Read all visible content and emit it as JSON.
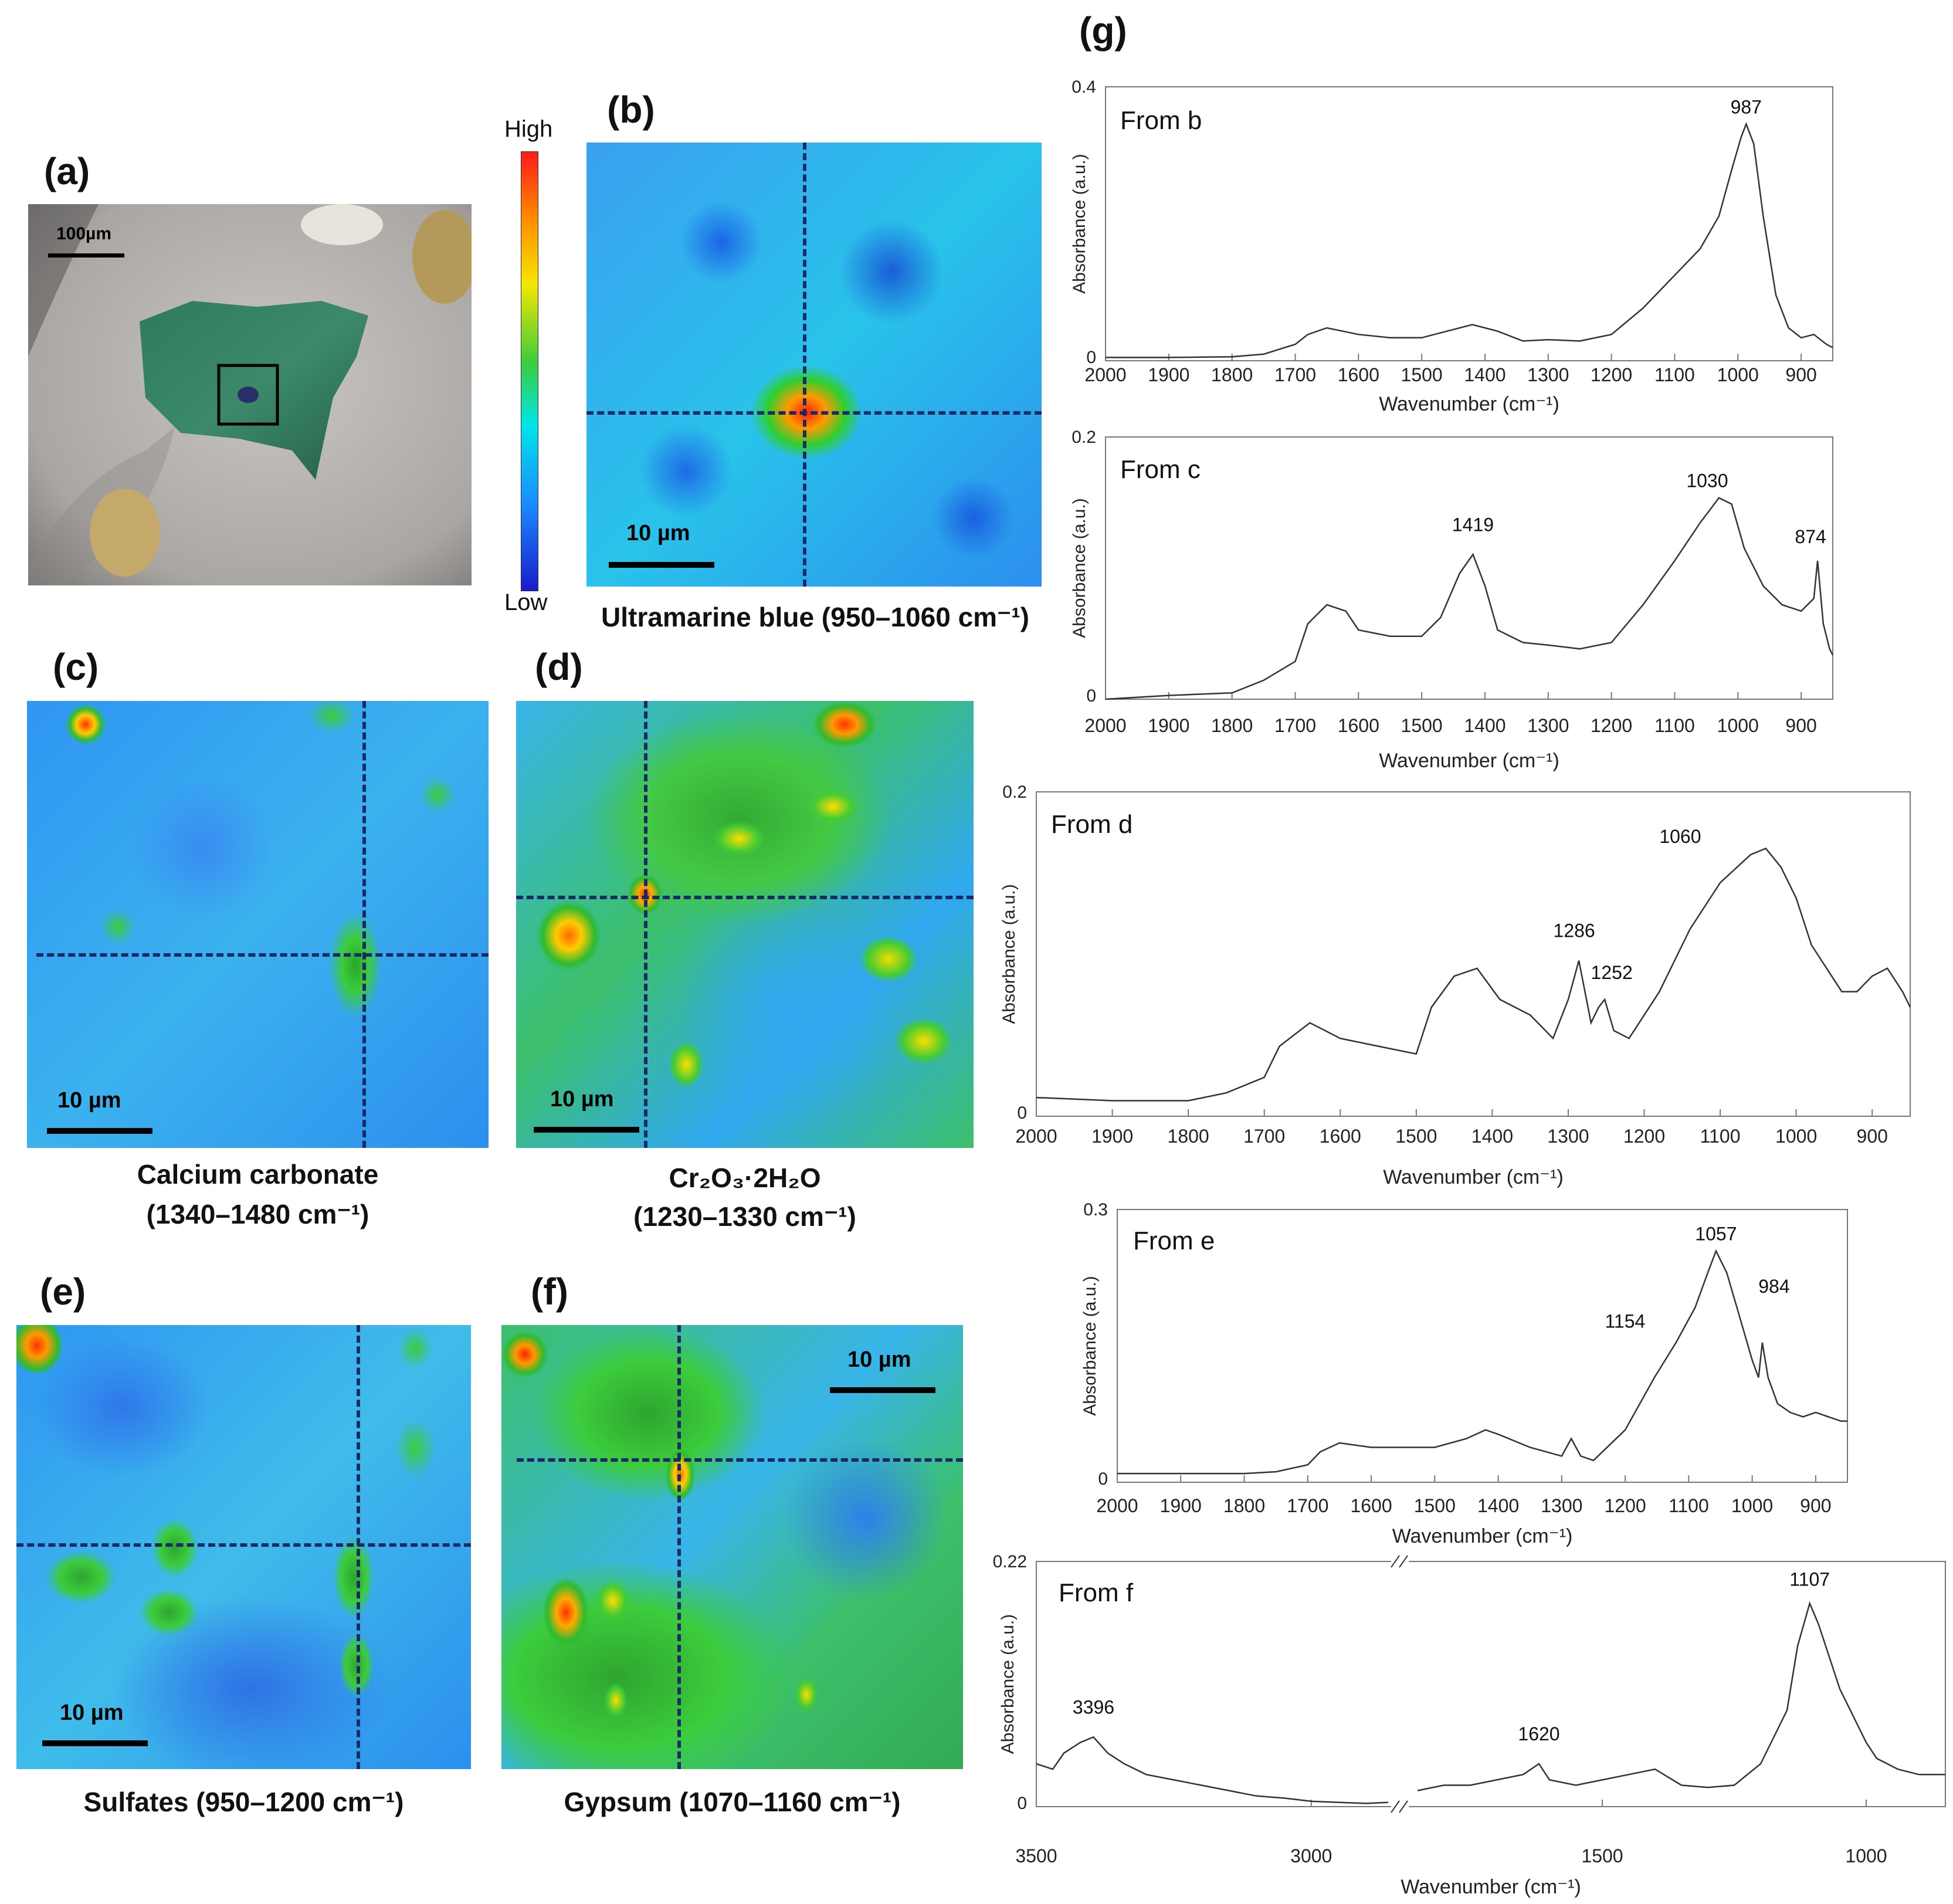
{
  "panel_a": {
    "label": "(a)",
    "scalebar": "100µm"
  },
  "colorbar": {
    "high": "High",
    "low": "Low"
  },
  "maps": [
    {
      "id": "b",
      "label": "(b)",
      "scalebar": "10 µm",
      "caption": "Ultramarine blue (950–1060 cm⁻¹)"
    },
    {
      "id": "c",
      "label": "(c)",
      "scalebar": "10 µm",
      "caption_line1": "Calcium carbonate",
      "caption_line2": "(1340–1480 cm⁻¹)"
    },
    {
      "id": "d",
      "label": "(d)",
      "scalebar": "10 µm",
      "caption_line1": "Cr₂O₃·2H₂O",
      "caption_line2": "(1230–1330 cm⁻¹)"
    },
    {
      "id": "e",
      "label": "(e)",
      "scalebar": "10 µm",
      "caption": "Sulfates (950–1200 cm⁻¹)"
    },
    {
      "id": "f",
      "label": "(f)",
      "scalebar": "10 µm",
      "caption": "Gypsum (1070–1160 cm⁻¹)"
    }
  ],
  "panel_g": {
    "label": "(g)"
  },
  "chart_data": [
    {
      "type": "line",
      "title": "From b",
      "xlabel": "Wavenumber (cm⁻¹)",
      "ylabel": "Absorbance (a.u.)",
      "xlim": [
        2000,
        850
      ],
      "ylim": [
        0,
        0.4
      ],
      "xticks": [
        "2000",
        "1900",
        "1800",
        "1700",
        "1600",
        "1500",
        "1400",
        "1300",
        "1200",
        "1100",
        "1000",
        "900"
      ],
      "yticks": [
        "0",
        "0.4"
      ],
      "annotations": [
        "987"
      ],
      "series": [
        {
          "x": [
            2000,
            1900,
            1800,
            1750,
            1700,
            1680,
            1650,
            1600,
            1550,
            1500,
            1460,
            1420,
            1380,
            1340,
            1300,
            1250,
            1200,
            1150,
            1100,
            1060,
            1030,
            1010,
            995,
            987,
            975,
            960,
            940,
            920,
            900,
            880,
            860,
            850
          ],
          "y": [
            0.005,
            0.005,
            0.006,
            0.01,
            0.025,
            0.04,
            0.05,
            0.04,
            0.035,
            0.035,
            0.045,
            0.055,
            0.045,
            0.03,
            0.032,
            0.03,
            0.04,
            0.08,
            0.13,
            0.17,
            0.22,
            0.29,
            0.34,
            0.36,
            0.33,
            0.22,
            0.1,
            0.05,
            0.035,
            0.04,
            0.025,
            0.02
          ]
        }
      ]
    },
    {
      "type": "line",
      "title": "From c",
      "xlabel": "Wavenumber (cm⁻¹)",
      "ylabel": "Absorbance (a.u.)",
      "xlim": [
        2000,
        850
      ],
      "ylim": [
        0,
        0.2
      ],
      "xticks": [
        "2000",
        "1900",
        "1800",
        "1700",
        "1600",
        "1500",
        "1400",
        "1300",
        "1200",
        "1100",
        "1000",
        "900"
      ],
      "yticks": [
        "0",
        "0.2"
      ],
      "annotations": [
        "1419",
        "1030",
        "874"
      ],
      "series": [
        {
          "x": [
            2000,
            1900,
            1800,
            1750,
            1700,
            1680,
            1650,
            1620,
            1600,
            1550,
            1500,
            1470,
            1440,
            1419,
            1400,
            1380,
            1340,
            1300,
            1250,
            1200,
            1150,
            1100,
            1060,
            1030,
            1010,
            990,
            960,
            930,
            900,
            880,
            874,
            865,
            855,
            850
          ],
          "y": [
            0.0,
            0.003,
            0.005,
            0.015,
            0.03,
            0.06,
            0.075,
            0.07,
            0.055,
            0.05,
            0.05,
            0.065,
            0.1,
            0.115,
            0.09,
            0.055,
            0.045,
            0.043,
            0.04,
            0.045,
            0.075,
            0.11,
            0.14,
            0.16,
            0.155,
            0.12,
            0.09,
            0.075,
            0.07,
            0.08,
            0.11,
            0.06,
            0.04,
            0.035
          ]
        }
      ]
    },
    {
      "type": "line",
      "title": "From d",
      "xlabel": "Wavenumber (cm⁻¹)",
      "ylabel": "Absorbance (a.u.)",
      "xlim": [
        2000,
        850
      ],
      "ylim": [
        0,
        0.2
      ],
      "xticks": [
        "2000",
        "1900",
        "1800",
        "1700",
        "1600",
        "1500",
        "1400",
        "1300",
        "1200",
        "1100",
        "1000",
        "900"
      ],
      "yticks": [
        "0",
        "0.2"
      ],
      "annotations": [
        "1060",
        "1286",
        "1252"
      ],
      "series": [
        {
          "x": [
            2000,
            1900,
            1800,
            1750,
            1700,
            1680,
            1640,
            1600,
            1550,
            1500,
            1480,
            1450,
            1420,
            1390,
            1370,
            1350,
            1320,
            1300,
            1286,
            1270,
            1260,
            1252,
            1240,
            1220,
            1180,
            1140,
            1100,
            1060,
            1040,
            1020,
            1000,
            980,
            960,
            940,
            920,
            900,
            880,
            860,
            850
          ],
          "y": [
            0.012,
            0.01,
            0.01,
            0.015,
            0.025,
            0.045,
            0.06,
            0.05,
            0.045,
            0.04,
            0.07,
            0.09,
            0.095,
            0.075,
            0.07,
            0.065,
            0.05,
            0.075,
            0.1,
            0.06,
            0.07,
            0.075,
            0.055,
            0.05,
            0.08,
            0.12,
            0.15,
            0.168,
            0.172,
            0.16,
            0.14,
            0.11,
            0.095,
            0.08,
            0.08,
            0.09,
            0.095,
            0.08,
            0.07
          ]
        }
      ]
    },
    {
      "type": "line",
      "title": "From e",
      "xlabel": "Wavenumber (cm⁻¹)",
      "ylabel": "Absorbance (a.u.)",
      "xlim": [
        2000,
        850
      ],
      "ylim": [
        0,
        0.3
      ],
      "xticks": [
        "2000",
        "1900",
        "1800",
        "1700",
        "1600",
        "1500",
        "1400",
        "1300",
        "1200",
        "1100",
        "1000",
        "900"
      ],
      "yticks": [
        "0",
        "0.3"
      ],
      "annotations": [
        "1057",
        "1154",
        "984"
      ],
      "series": [
        {
          "x": [
            2000,
            1900,
            1800,
            1750,
            1700,
            1680,
            1650,
            1600,
            1550,
            1500,
            1450,
            1420,
            1400,
            1350,
            1300,
            1285,
            1270,
            1250,
            1200,
            1154,
            1120,
            1090,
            1070,
            1057,
            1040,
            1020,
            1000,
            990,
            984,
            975,
            960,
            940,
            920,
            900,
            880,
            860,
            850
          ],
          "y": [
            0.01,
            0.01,
            0.01,
            0.012,
            0.02,
            0.035,
            0.045,
            0.04,
            0.04,
            0.04,
            0.05,
            0.06,
            0.055,
            0.04,
            0.03,
            0.05,
            0.03,
            0.025,
            0.06,
            0.12,
            0.16,
            0.2,
            0.24,
            0.265,
            0.24,
            0.19,
            0.14,
            0.12,
            0.16,
            0.12,
            0.09,
            0.08,
            0.075,
            0.08,
            0.075,
            0.07,
            0.07
          ]
        }
      ]
    },
    {
      "type": "line",
      "title": "From f",
      "xlabel": "Wavenumber (cm⁻¹)",
      "ylabel": "Absorbance (a.u.)",
      "ylim": [
        0,
        0.22
      ],
      "broken_axis": true,
      "xticks": [
        "3500",
        "3000",
        "1500",
        "1000"
      ],
      "yticks": [
        "0",
        "0.22"
      ],
      "annotations": [
        "3396",
        "1620",
        "1107"
      ],
      "series": [
        {
          "name": "",
          "x": [
            3500,
            3470,
            3450,
            3420,
            3396,
            3370,
            3340,
            3300,
            3250,
            3200,
            3150,
            3100,
            3050,
            3000,
            2950,
            2900,
            2860
          ],
          "y": [
            0.04,
            0.035,
            0.05,
            0.06,
            0.065,
            0.05,
            0.04,
            0.03,
            0.025,
            0.02,
            0.015,
            0.01,
            0.008,
            0.005,
            0.004,
            0.003,
            0.004
          ]
        },
        {
          "x": [
            1850,
            1800,
            1750,
            1700,
            1650,
            1620,
            1600,
            1550,
            1500,
            1450,
            1400,
            1350,
            1300,
            1250,
            1200,
            1150,
            1130,
            1107,
            1090,
            1070,
            1050,
            1030,
            1000,
            980,
            960,
            940,
            900,
            880,
            850
          ],
          "y": [
            0.015,
            0.02,
            0.02,
            0.025,
            0.03,
            0.04,
            0.025,
            0.02,
            0.025,
            0.03,
            0.035,
            0.02,
            0.018,
            0.02,
            0.04,
            0.09,
            0.15,
            0.19,
            0.17,
            0.14,
            0.11,
            0.09,
            0.06,
            0.045,
            0.04,
            0.035,
            0.03,
            0.03,
            0.03
          ]
        }
      ]
    }
  ]
}
